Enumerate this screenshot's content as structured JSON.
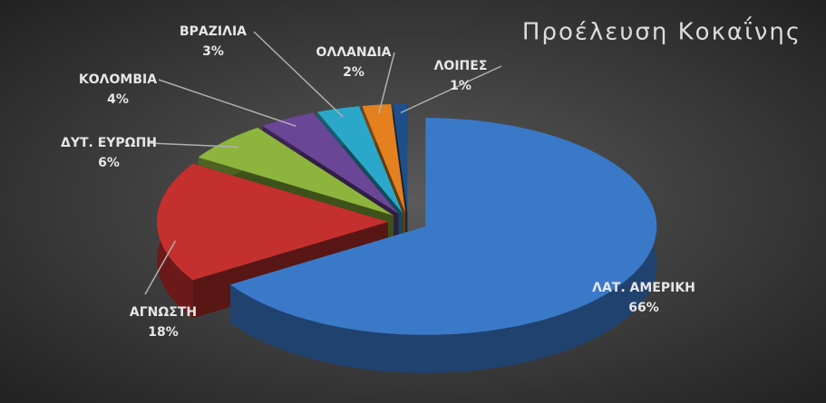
{
  "chart_data": {
    "type": "pie",
    "title": "Προέλευση Κοκαΐνης",
    "categories": [
      "ΛΑΤ. ΑΜΕΡΙΚΗ",
      "ΑΓΝΩΣΤΗ",
      "ΔΥΤ. ΕΥΡΩΠΗ",
      "ΚΟΛΟΜΒΙΑ",
      "ΒΡΑΖΙΛΙΑ",
      "ΟΛΛΑΝΔΙΑ",
      "ΛΟΙΠΕΣ"
    ],
    "values": [
      66,
      18,
      6,
      4,
      3,
      2,
      1
    ],
    "value_labels": [
      "66%",
      "18%",
      "6%",
      "4%",
      "3%",
      "2%",
      "1%"
    ],
    "colors": [
      "#3a78c8",
      "#c3302e",
      "#8db43c",
      "#6b4596",
      "#2ba7c9",
      "#e5801f",
      "#1f4f88"
    ]
  }
}
